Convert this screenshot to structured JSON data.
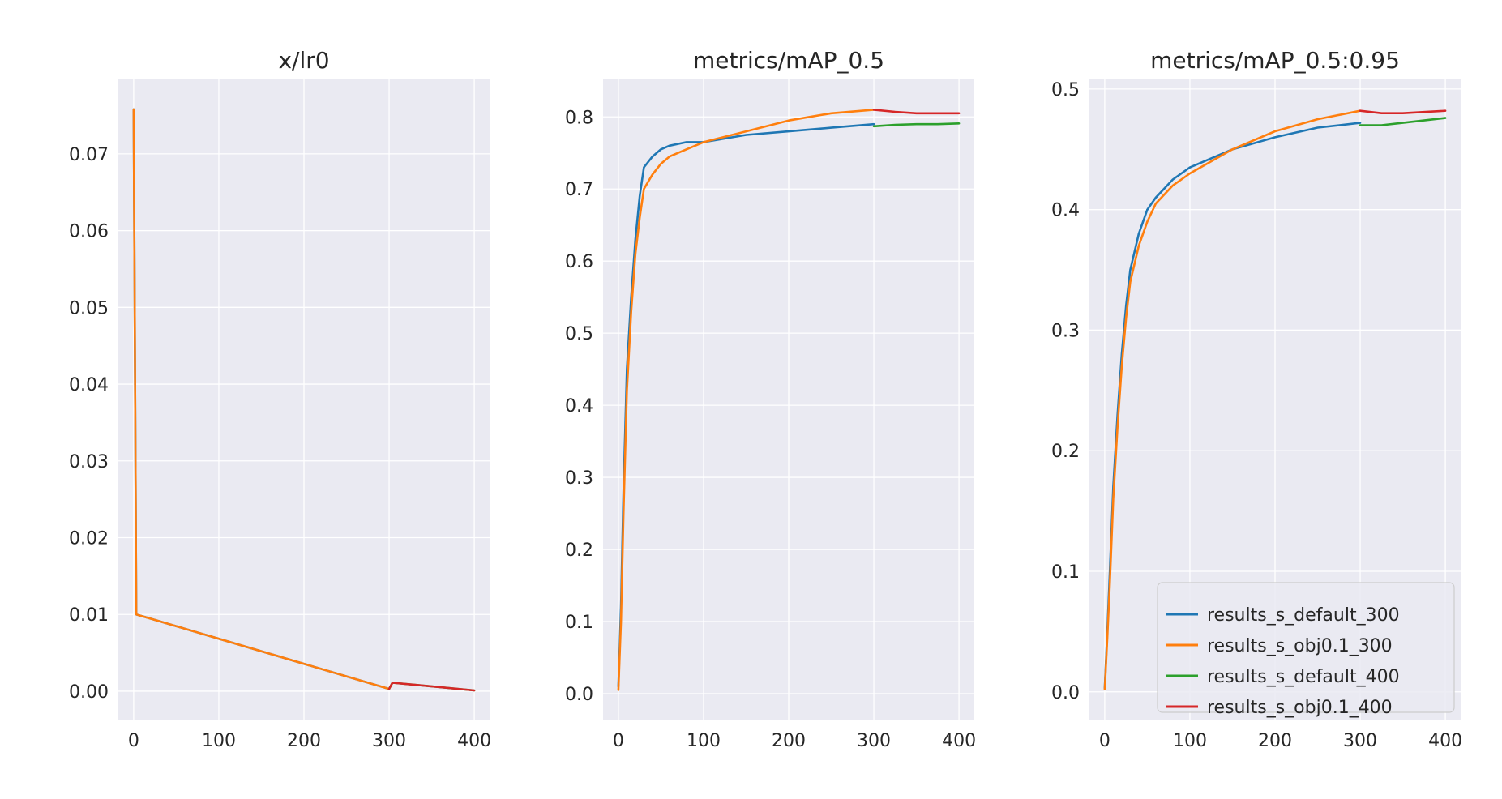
{
  "chart_data": [
    {
      "type": "line",
      "title": "x/lr0",
      "xlabel": "",
      "ylabel": "",
      "xlim": [
        -18,
        418
      ],
      "ylim": [
        -0.0037,
        0.0797
      ],
      "xticks": [
        0,
        100,
        200,
        300,
        400
      ],
      "xtick_labels": [
        "0",
        "100",
        "200",
        "300",
        "400"
      ],
      "yticks": [
        0.0,
        0.01,
        0.02,
        0.03,
        0.04,
        0.05,
        0.06,
        0.07
      ],
      "ytick_labels": [
        "0.00",
        "0.01",
        "0.02",
        "0.03",
        "0.04",
        "0.05",
        "0.06",
        "0.07"
      ],
      "grid": true,
      "series": [
        {
          "name": "results_s_default_300",
          "color": "#1f77b4",
          "x": [
            0,
            3,
            300
          ],
          "y": [
            0.0758,
            0.01,
            0.0003
          ]
        },
        {
          "name": "results_s_obj0.1_300",
          "color": "#ff7f0e",
          "x": [
            0,
            3,
            300
          ],
          "y": [
            0.0758,
            0.01,
            0.0003
          ]
        },
        {
          "name": "results_s_default_400",
          "color": "#2ca02c",
          "x": [
            300,
            304,
            400
          ],
          "y": [
            0.0003,
            0.0011,
            0.0001
          ]
        },
        {
          "name": "results_s_obj0.1_400",
          "color": "#d62728",
          "x": [
            300,
            304,
            400
          ],
          "y": [
            0.0003,
            0.0011,
            0.0001
          ]
        }
      ]
    },
    {
      "type": "line",
      "title": "metrics/mAP_0.5",
      "xlabel": "",
      "ylabel": "",
      "xlim": [
        -18,
        418
      ],
      "ylim": [
        -0.036,
        0.852
      ],
      "xticks": [
        0,
        100,
        200,
        300,
        400
      ],
      "xtick_labels": [
        "0",
        "100",
        "200",
        "300",
        "400"
      ],
      "yticks": [
        0.0,
        0.1,
        0.2,
        0.3,
        0.4,
        0.5,
        0.6,
        0.7,
        0.8
      ],
      "ytick_labels": [
        "0.0",
        "0.1",
        "0.2",
        "0.3",
        "0.4",
        "0.5",
        "0.6",
        "0.7",
        "0.8"
      ],
      "grid": true,
      "series": [
        {
          "name": "results_s_default_300",
          "color": "#1f77b4",
          "x": [
            0,
            3,
            6,
            10,
            15,
            20,
            25,
            30,
            40,
            50,
            60,
            80,
            100,
            150,
            200,
            250,
            300
          ],
          "y": [
            0.01,
            0.12,
            0.28,
            0.45,
            0.55,
            0.63,
            0.69,
            0.73,
            0.745,
            0.755,
            0.76,
            0.765,
            0.765,
            0.775,
            0.78,
            0.785,
            0.79
          ]
        },
        {
          "name": "results_s_obj0.1_300",
          "color": "#ff7f0e",
          "x": [
            0,
            3,
            6,
            10,
            15,
            20,
            25,
            30,
            40,
            50,
            60,
            80,
            100,
            150,
            200,
            250,
            300
          ],
          "y": [
            0.005,
            0.1,
            0.25,
            0.42,
            0.53,
            0.61,
            0.66,
            0.7,
            0.72,
            0.735,
            0.745,
            0.755,
            0.765,
            0.78,
            0.795,
            0.805,
            0.81
          ]
        },
        {
          "name": "results_s_default_400",
          "color": "#2ca02c",
          "x": [
            300,
            325,
            350,
            375,
            400
          ],
          "y": [
            0.787,
            0.789,
            0.79,
            0.79,
            0.791
          ]
        },
        {
          "name": "results_s_obj0.1_400",
          "color": "#d62728",
          "x": [
            300,
            325,
            350,
            375,
            400
          ],
          "y": [
            0.81,
            0.807,
            0.805,
            0.805,
            0.805
          ]
        }
      ]
    },
    {
      "type": "line",
      "title": "metrics/mAP_0.5:0.95",
      "xlabel": "",
      "ylabel": "",
      "xlim": [
        -18,
        418
      ],
      "ylim": [
        -0.023,
        0.508
      ],
      "xticks": [
        0,
        100,
        200,
        300,
        400
      ],
      "xtick_labels": [
        "0",
        "100",
        "200",
        "300",
        "400"
      ],
      "yticks": [
        0.0,
        0.1,
        0.2,
        0.3,
        0.4,
        0.5
      ],
      "ytick_labels": [
        "0.0",
        "0.1",
        "0.2",
        "0.3",
        "0.4",
        "0.5"
      ],
      "grid": true,
      "legend": "lower-right",
      "series": [
        {
          "name": "results_s_default_300",
          "color": "#1f77b4",
          "x": [
            0,
            3,
            6,
            10,
            15,
            20,
            25,
            30,
            40,
            50,
            60,
            80,
            100,
            150,
            200,
            250,
            300
          ],
          "y": [
            0.003,
            0.05,
            0.1,
            0.17,
            0.23,
            0.28,
            0.32,
            0.35,
            0.38,
            0.4,
            0.41,
            0.425,
            0.435,
            0.45,
            0.46,
            0.468,
            0.472
          ]
        },
        {
          "name": "results_s_obj0.1_300",
          "color": "#ff7f0e",
          "x": [
            0,
            3,
            6,
            10,
            15,
            20,
            25,
            30,
            40,
            50,
            60,
            80,
            100,
            150,
            200,
            250,
            300
          ],
          "y": [
            0.002,
            0.045,
            0.09,
            0.16,
            0.22,
            0.27,
            0.31,
            0.34,
            0.37,
            0.39,
            0.405,
            0.42,
            0.43,
            0.45,
            0.465,
            0.475,
            0.482
          ]
        },
        {
          "name": "results_s_default_400",
          "color": "#2ca02c",
          "x": [
            300,
            325,
            350,
            375,
            400
          ],
          "y": [
            0.47,
            0.47,
            0.472,
            0.474,
            0.476
          ]
        },
        {
          "name": "results_s_obj0.1_400",
          "color": "#d62728",
          "x": [
            300,
            325,
            350,
            375,
            400
          ],
          "y": [
            0.482,
            0.48,
            0.48,
            0.481,
            0.482
          ]
        }
      ]
    }
  ]
}
